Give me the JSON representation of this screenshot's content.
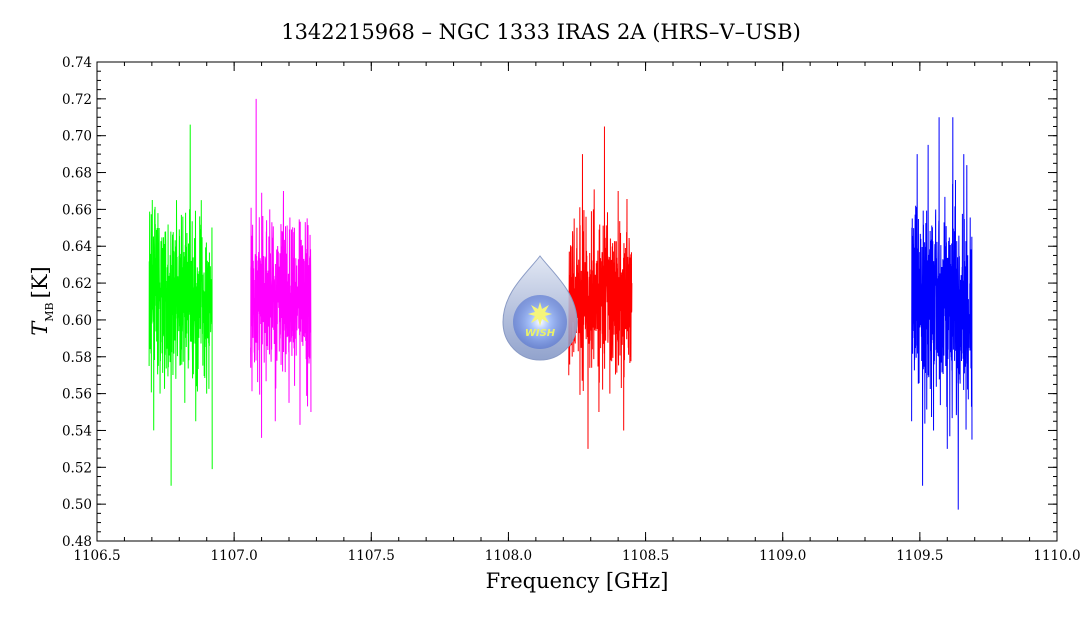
{
  "chart_data": {
    "type": "line",
    "title": "1342215968 – NGC 1333 IRAS 2A (HRS–V–USB)",
    "xlabel": "Frequency [GHz]",
    "ylabel": {
      "symbol": "T",
      "subscript": "MB",
      "unit": "[K]"
    },
    "xlim": [
      1106.5,
      1110.0
    ],
    "ylim": [
      0.48,
      0.74
    ],
    "x_ticks": [
      1106.5,
      1107.0,
      1107.5,
      1108.0,
      1108.5,
      1109.0,
      1109.5,
      1110.0
    ],
    "x_tick_labels": [
      "1106.5",
      "1107.0",
      "1107.5",
      "1108.0",
      "1108.5",
      "1109.0",
      "1109.5",
      "1110.0"
    ],
    "y_ticks": [
      0.48,
      0.5,
      0.52,
      0.54,
      0.56,
      0.58,
      0.6,
      0.62,
      0.64,
      0.66,
      0.68,
      0.7,
      0.72,
      0.74
    ],
    "y_tick_labels": [
      "0.48",
      "0.50",
      "0.52",
      "0.54",
      "0.56",
      "0.58",
      "0.60",
      "0.62",
      "0.64",
      "0.66",
      "0.68",
      "0.70",
      "0.72",
      "0.74"
    ],
    "grid": false,
    "legend": "none",
    "series": [
      {
        "color": "#00ff00",
        "x_range": [
          1106.69,
          1106.92
        ],
        "center": 0.612,
        "std": 0.02,
        "points_sampled": [
          [
            1106.69,
            0.575
          ],
          [
            1106.71,
            0.66
          ],
          [
            1106.73,
            0.56
          ],
          [
            1106.75,
            0.648
          ],
          [
            1106.77,
            0.51
          ],
          [
            1106.79,
            0.665
          ],
          [
            1106.82,
            0.555
          ],
          [
            1106.84,
            0.706
          ],
          [
            1106.86,
            0.545
          ],
          [
            1106.88,
            0.665
          ],
          [
            1106.9,
            0.56
          ],
          [
            1106.92,
            0.519
          ]
        ]
      },
      {
        "color": "#ff00ff",
        "x_range": [
          1107.06,
          1107.28
        ],
        "center": 0.612,
        "std": 0.02,
        "points_sampled": [
          [
            1107.06,
            0.585
          ],
          [
            1107.08,
            0.72
          ],
          [
            1107.1,
            0.536
          ],
          [
            1107.13,
            0.66
          ],
          [
            1107.15,
            0.545
          ],
          [
            1107.18,
            0.67
          ],
          [
            1107.2,
            0.555
          ],
          [
            1107.22,
            0.65
          ],
          [
            1107.24,
            0.543
          ],
          [
            1107.26,
            0.64
          ],
          [
            1107.28,
            0.55
          ]
        ]
      },
      {
        "color": "#ff0000",
        "x_range": [
          1108.22,
          1108.45
        ],
        "center": 0.613,
        "std": 0.02,
        "points_sampled": [
          [
            1108.22,
            0.57
          ],
          [
            1108.25,
            0.65
          ],
          [
            1108.27,
            0.69
          ],
          [
            1108.29,
            0.53
          ],
          [
            1108.31,
            0.66
          ],
          [
            1108.33,
            0.55
          ],
          [
            1108.35,
            0.705
          ],
          [
            1108.37,
            0.56
          ],
          [
            1108.4,
            0.67
          ],
          [
            1108.42,
            0.54
          ],
          [
            1108.45,
            0.62
          ]
        ]
      },
      {
        "color": "#0000ff",
        "x_range": [
          1109.47,
          1109.69
        ],
        "center": 0.61,
        "std": 0.025,
        "points_sampled": [
          [
            1109.47,
            0.545
          ],
          [
            1109.49,
            0.69
          ],
          [
            1109.51,
            0.51
          ],
          [
            1109.53,
            0.695
          ],
          [
            1109.55,
            0.54
          ],
          [
            1109.57,
            0.71
          ],
          [
            1109.6,
            0.53
          ],
          [
            1109.62,
            0.71
          ],
          [
            1109.64,
            0.497
          ],
          [
            1109.66,
            0.69
          ],
          [
            1109.69,
            0.535
          ]
        ]
      }
    ]
  },
  "logo": {
    "name": "wish-logo",
    "text": "WISH"
  }
}
